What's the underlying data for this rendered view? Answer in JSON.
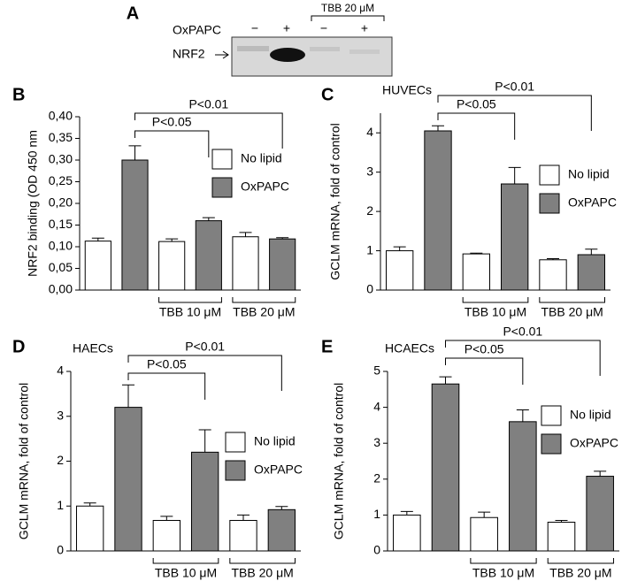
{
  "blot": {
    "label": "A",
    "treatment": "OxPAPC",
    "lanes": [
      "−",
      "+",
      "−",
      "+"
    ],
    "inhibitor": "TBB 20 μM",
    "protein": "NRF2"
  },
  "chart_data": [
    {
      "type": "bar",
      "panel": "B",
      "ylabel": "NRF2 binding (OD 450 nm",
      "categories": [
        null,
        "TBB 10 μM",
        "TBB 20 μM"
      ],
      "series": [
        {
          "name": "No lipid",
          "color": "#ffffff",
          "values": [
            0.113,
            0.112,
            0.123
          ],
          "errors": [
            0.007,
            0.006,
            0.01
          ]
        },
        {
          "name": "OxPAPC",
          "color": "#808080",
          "values": [
            0.3,
            0.16,
            0.118
          ],
          "errors": [
            0.033,
            0.007,
            0.003
          ]
        }
      ],
      "ylim": [
        0,
        0.4
      ],
      "yticks": [
        {
          "value": 0,
          "label": "0,00"
        },
        {
          "value": 0.05,
          "label": "0,05"
        },
        {
          "value": 0.1,
          "label": "0,10"
        },
        {
          "value": 0.15,
          "label": "0,15"
        },
        {
          "value": 0.2,
          "label": "0,20"
        },
        {
          "value": 0.25,
          "label": "0,25"
        },
        {
          "value": 0.3,
          "label": "0,30"
        },
        {
          "value": 0.35,
          "label": "0,35"
        },
        {
          "value": 0.4,
          "label": "0,40"
        }
      ],
      "annotations": [
        "P<0.05",
        "P<0.01"
      ],
      "legend": "center right"
    },
    {
      "type": "bar",
      "panel": "C",
      "subtitle": "HUVECs",
      "ylabel": "GCLM mRNA, fold of control",
      "categories": [
        null,
        "TBB 10 μM",
        "TBB 20 μM"
      ],
      "series": [
        {
          "name": "No lipid",
          "color": "#ffffff",
          "values": [
            1.0,
            0.92,
            0.77
          ],
          "errors": [
            0.1,
            0.02,
            0.03
          ]
        },
        {
          "name": "OxPAPC",
          "color": "#808080",
          "values": [
            4.05,
            2.7,
            0.9
          ],
          "errors": [
            0.13,
            0.42,
            0.14
          ]
        }
      ],
      "ylim": [
        0,
        4.5
      ],
      "yticks": [
        0,
        1,
        2,
        3,
        4
      ],
      "annotations": [
        "P<0.05",
        "P<0.01"
      ],
      "legend": "center right"
    },
    {
      "type": "bar",
      "panel": "D",
      "subtitle": "HAECs",
      "ylabel": "GCLM mRNA, fold of control",
      "categories": [
        null,
        "TBB 10 μM",
        "TBB 20 μM"
      ],
      "series": [
        {
          "name": "No lipid",
          "color": "#ffffff",
          "values": [
            1.0,
            0.68,
            0.68
          ],
          "errors": [
            0.07,
            0.09,
            0.12
          ]
        },
        {
          "name": "OxPAPC",
          "color": "#808080",
          "values": [
            3.2,
            2.2,
            0.92
          ],
          "errors": [
            0.5,
            0.5,
            0.07
          ]
        }
      ],
      "ylim": [
        0,
        4
      ],
      "yticks": [
        0,
        1,
        2,
        3,
        4
      ],
      "annotations": [
        "P<0.05",
        "P<0.01"
      ],
      "legend": "center right"
    },
    {
      "type": "bar",
      "panel": "E",
      "subtitle": "HCAECs",
      "ylabel": "GCLM mRNA, fold of control",
      "categories": [
        null,
        "TBB 10 μM",
        "TBB 20 μM"
      ],
      "series": [
        {
          "name": "No lipid",
          "color": "#ffffff",
          "values": [
            1.0,
            0.93,
            0.8
          ],
          "errors": [
            0.1,
            0.15,
            0.05
          ]
        },
        {
          "name": "OxPAPC",
          "color": "#808080",
          "values": [
            4.65,
            3.6,
            2.08
          ],
          "errors": [
            0.2,
            0.33,
            0.14
          ]
        }
      ],
      "ylim": [
        0,
        5
      ],
      "yticks": [
        0,
        1,
        2,
        3,
        4,
        5
      ],
      "annotations": [
        "P<0.05",
        "P<0.01"
      ],
      "legend": "center right"
    }
  ]
}
